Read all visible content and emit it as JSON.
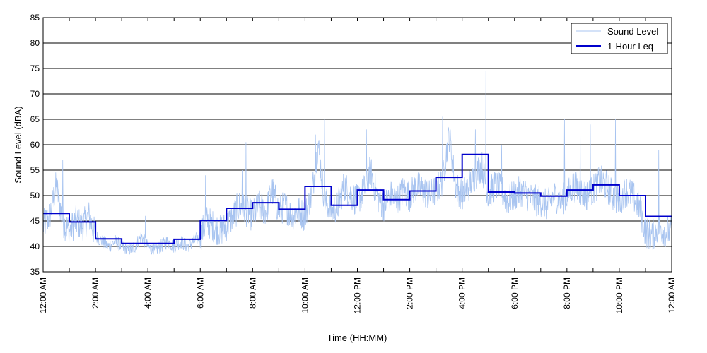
{
  "chart_data": {
    "type": "line",
    "title": "",
    "xlabel": "Time (HH:MM)",
    "ylabel": "Sound Level (dBA)",
    "ylim": [
      35,
      85
    ],
    "yticks": [
      35,
      40,
      45,
      50,
      55,
      60,
      65,
      70,
      75,
      80,
      85
    ],
    "xlim_hours": [
      0,
      24
    ],
    "xtick_labels": [
      "12:00 AM",
      "2:00 AM",
      "4:00 AM",
      "6:00 AM",
      "8:00 AM",
      "10:00 AM",
      "12:00 PM",
      "2:00 PM",
      "4:00 PM",
      "6:00 PM",
      "8:00 PM",
      "10:00 PM",
      "12:00 AM"
    ],
    "grid": "horizontal",
    "legend_position": "top-right",
    "series": [
      {
        "name": "Sound Level",
        "color": "#a8c4f0",
        "x_hours": [
          0,
          0.25,
          0.5,
          0.75,
          1,
          1.25,
          1.5,
          1.75,
          2,
          2.25,
          2.5,
          2.75,
          3,
          3.25,
          3.5,
          3.75,
          4,
          4.25,
          4.5,
          4.75,
          5,
          5.25,
          5.5,
          5.75,
          6,
          6.25,
          6.5,
          6.75,
          7,
          7.25,
          7.5,
          7.75,
          8,
          8.25,
          8.5,
          8.75,
          9,
          9.25,
          9.5,
          9.75,
          10,
          10.25,
          10.5,
          10.75,
          11,
          11.25,
          11.5,
          11.75,
          12,
          12.25,
          12.5,
          12.75,
          13,
          13.25,
          13.5,
          13.75,
          14,
          14.25,
          14.5,
          14.75,
          15,
          15.25,
          15.5,
          15.75,
          16,
          16.25,
          16.5,
          16.75,
          17,
          17.25,
          17.5,
          17.75,
          18,
          18.25,
          18.5,
          18.75,
          19,
          19.25,
          19.5,
          19.75,
          20,
          20.25,
          20.5,
          20.75,
          21,
          21.25,
          21.5,
          21.75,
          22,
          22.25,
          22.5,
          22.75,
          23,
          23.25,
          23.5,
          23.75,
          24
        ],
        "values": [
          44,
          46,
          52,
          45,
          43,
          45,
          44,
          46,
          42,
          41,
          40,
          41,
          40,
          39,
          40,
          42,
          40,
          39,
          40,
          41,
          40,
          41,
          40,
          41,
          42,
          45,
          44,
          43,
          44,
          46,
          48,
          47,
          46,
          48,
          47,
          51,
          47,
          48,
          46,
          47,
          46,
          50,
          60,
          49,
          47,
          48,
          52,
          50,
          49,
          51,
          55,
          50,
          48,
          50,
          49,
          51,
          50,
          52,
          51,
          50,
          51,
          53,
          62,
          52,
          50,
          52,
          54,
          56,
          50,
          52,
          51,
          49,
          50,
          51,
          50,
          49,
          49,
          48,
          50,
          49,
          50,
          52,
          51,
          50,
          51,
          53,
          52,
          50,
          49,
          51,
          50,
          48,
          43,
          42,
          44,
          43,
          43
        ],
        "peaks": [
          {
            "x": 0.75,
            "y": 57
          },
          {
            "x": 3.9,
            "y": 46
          },
          {
            "x": 6.2,
            "y": 54
          },
          {
            "x": 7.6,
            "y": 55
          },
          {
            "x": 7.75,
            "y": 60.5
          },
          {
            "x": 10.4,
            "y": 62
          },
          {
            "x": 10.75,
            "y": 65
          },
          {
            "x": 12.35,
            "y": 63
          },
          {
            "x": 15.25,
            "y": 65.5
          },
          {
            "x": 16.5,
            "y": 63
          },
          {
            "x": 16.9,
            "y": 74.5
          },
          {
            "x": 17.5,
            "y": 60
          },
          {
            "x": 19.9,
            "y": 65
          },
          {
            "x": 20.5,
            "y": 62
          },
          {
            "x": 20.9,
            "y": 64
          },
          {
            "x": 21.85,
            "y": 65
          },
          {
            "x": 23.5,
            "y": 59
          }
        ]
      },
      {
        "name": "1-Hour Leq",
        "color": "#0000cc",
        "x_hours": [
          0,
          1,
          2,
          3,
          4,
          5,
          6,
          7,
          8,
          9,
          10,
          11,
          12,
          13,
          14,
          15,
          16,
          17,
          18,
          19,
          20,
          21,
          22,
          23
        ],
        "values": [
          46.5,
          44.8,
          41.5,
          40.6,
          40.6,
          41.4,
          45.1,
          47.5,
          48.6,
          47.3,
          51.8,
          48.1,
          51.1,
          49.2,
          50.9,
          53.6,
          58.1,
          50.7,
          50.5,
          49.9,
          51.1,
          52.1,
          50.0,
          45.9
        ]
      }
    ]
  }
}
